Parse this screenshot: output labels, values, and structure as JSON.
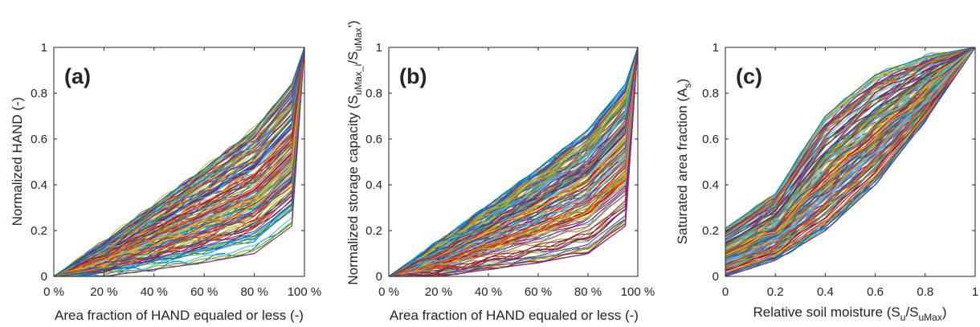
{
  "chart_data": [
    {
      "panel_label": "(a)",
      "type": "line",
      "xlabel": "Area fraction of HAND equaled or less (-)",
      "ylabel": "Normalized HAND (-)",
      "xlim": [
        0,
        100
      ],
      "ylim": [
        0,
        1
      ],
      "xticks": [
        "0 %",
        "20 %",
        "40 %",
        "60 %",
        "80 %",
        "100 %"
      ],
      "yticks": [
        "0",
        "0.2",
        "0.4",
        "0.6",
        "0.8",
        "1"
      ],
      "grid": false,
      "legend": "none",
      "series_summary": "several hundred catchment curves rising from (0,0) to (100,1)",
      "curve_family": "convex",
      "envelope": {
        "x": [
          0,
          20,
          40,
          60,
          80,
          95,
          100
        ],
        "upper": [
          0,
          0.15,
          0.31,
          0.47,
          0.64,
          0.84,
          1
        ],
        "lower": [
          0,
          0.0,
          0.03,
          0.06,
          0.1,
          0.22,
          1
        ]
      }
    },
    {
      "panel_label": "(b)",
      "type": "line",
      "xlabel": "Area fraction of HAND equaled or less (-)",
      "ylabel": "Normalized storage capacity (S_uMax_i/S_uMax')",
      "ylabel_parts": {
        "main": "Normalized storage capacity (S",
        "sub1": "uMax_i",
        "mid": "/S",
        "sub2": "uMax",
        "end": "')"
      },
      "xlim": [
        0,
        100
      ],
      "ylim": [
        0,
        1
      ],
      "xticks": [
        "0 %",
        "20 %",
        "40 %",
        "60 %",
        "80 %",
        "100 %"
      ],
      "yticks": [
        "0",
        "0.2",
        "0.4",
        "0.6",
        "0.8",
        "1"
      ],
      "grid": false,
      "legend": "none",
      "series_summary": "several hundred catchment curves rising from (0,0) to (100,1)",
      "curve_family": "convex",
      "envelope": {
        "x": [
          0,
          20,
          40,
          60,
          80,
          95,
          100
        ],
        "upper": [
          0,
          0.15,
          0.31,
          0.47,
          0.64,
          0.84,
          1
        ],
        "lower": [
          0,
          0.0,
          0.03,
          0.06,
          0.1,
          0.22,
          1
        ]
      }
    },
    {
      "panel_label": "(c)",
      "type": "line",
      "xlabel": "Relative soil moisture (S_u/S_uMax)",
      "xlabel_parts": {
        "main": "Relative soil moisture (S",
        "sub1": "u",
        "mid": "/S",
        "sub2": "uMax",
        "end": ")"
      },
      "ylabel": "Saturated area fraction (A_s)",
      "ylabel_parts": {
        "main": "Saturated area fraction (A",
        "sub1": "s",
        "end": ")"
      },
      "xlim": [
        0,
        1
      ],
      "ylim": [
        0,
        1
      ],
      "xticks": [
        "0",
        "0.2",
        "0.4",
        "0.6",
        "0.8",
        "1"
      ],
      "yticks": [
        "0",
        "0.2",
        "0.4",
        "0.6",
        "0.8",
        "1"
      ],
      "grid": false,
      "legend": "none",
      "series_summary": "several hundred catchment curves from near (0,0.05) to (1,1)",
      "curve_family": "sigmoid",
      "envelope": {
        "x": [
          0,
          0.2,
          0.4,
          0.6,
          0.8,
          1
        ],
        "upper": [
          0.21,
          0.36,
          0.7,
          0.88,
          0.96,
          1
        ],
        "lower": [
          0.0,
          0.07,
          0.2,
          0.4,
          0.68,
          1
        ]
      }
    }
  ],
  "palette": [
    "#0072BD",
    "#D95319",
    "#EDB120",
    "#7E2F8E",
    "#77AC30",
    "#4DBEEE",
    "#A2142F"
  ]
}
